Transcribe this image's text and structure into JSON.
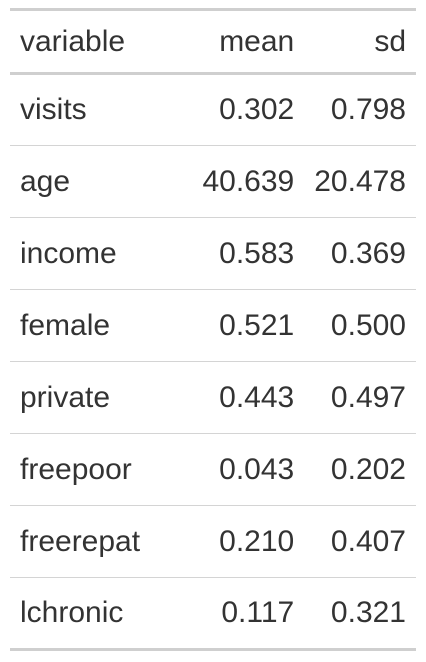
{
  "table": {
    "columns": [
      "variable",
      "mean",
      "sd"
    ],
    "rows": [
      {
        "variable": "visits",
        "mean": "0.302",
        "sd": "0.798"
      },
      {
        "variable": "age",
        "mean": "40.639",
        "sd": "20.478"
      },
      {
        "variable": "income",
        "mean": "0.583",
        "sd": "0.369"
      },
      {
        "variable": "female",
        "mean": "0.521",
        "sd": "0.500"
      },
      {
        "variable": "private",
        "mean": "0.443",
        "sd": "0.497"
      },
      {
        "variable": "freepoor",
        "mean": "0.043",
        "sd": "0.202"
      },
      {
        "variable": "freerepat",
        "mean": "0.210",
        "sd": "0.407"
      },
      {
        "variable": "lchronic",
        "mean": "0.117",
        "sd": "0.321"
      }
    ]
  }
}
